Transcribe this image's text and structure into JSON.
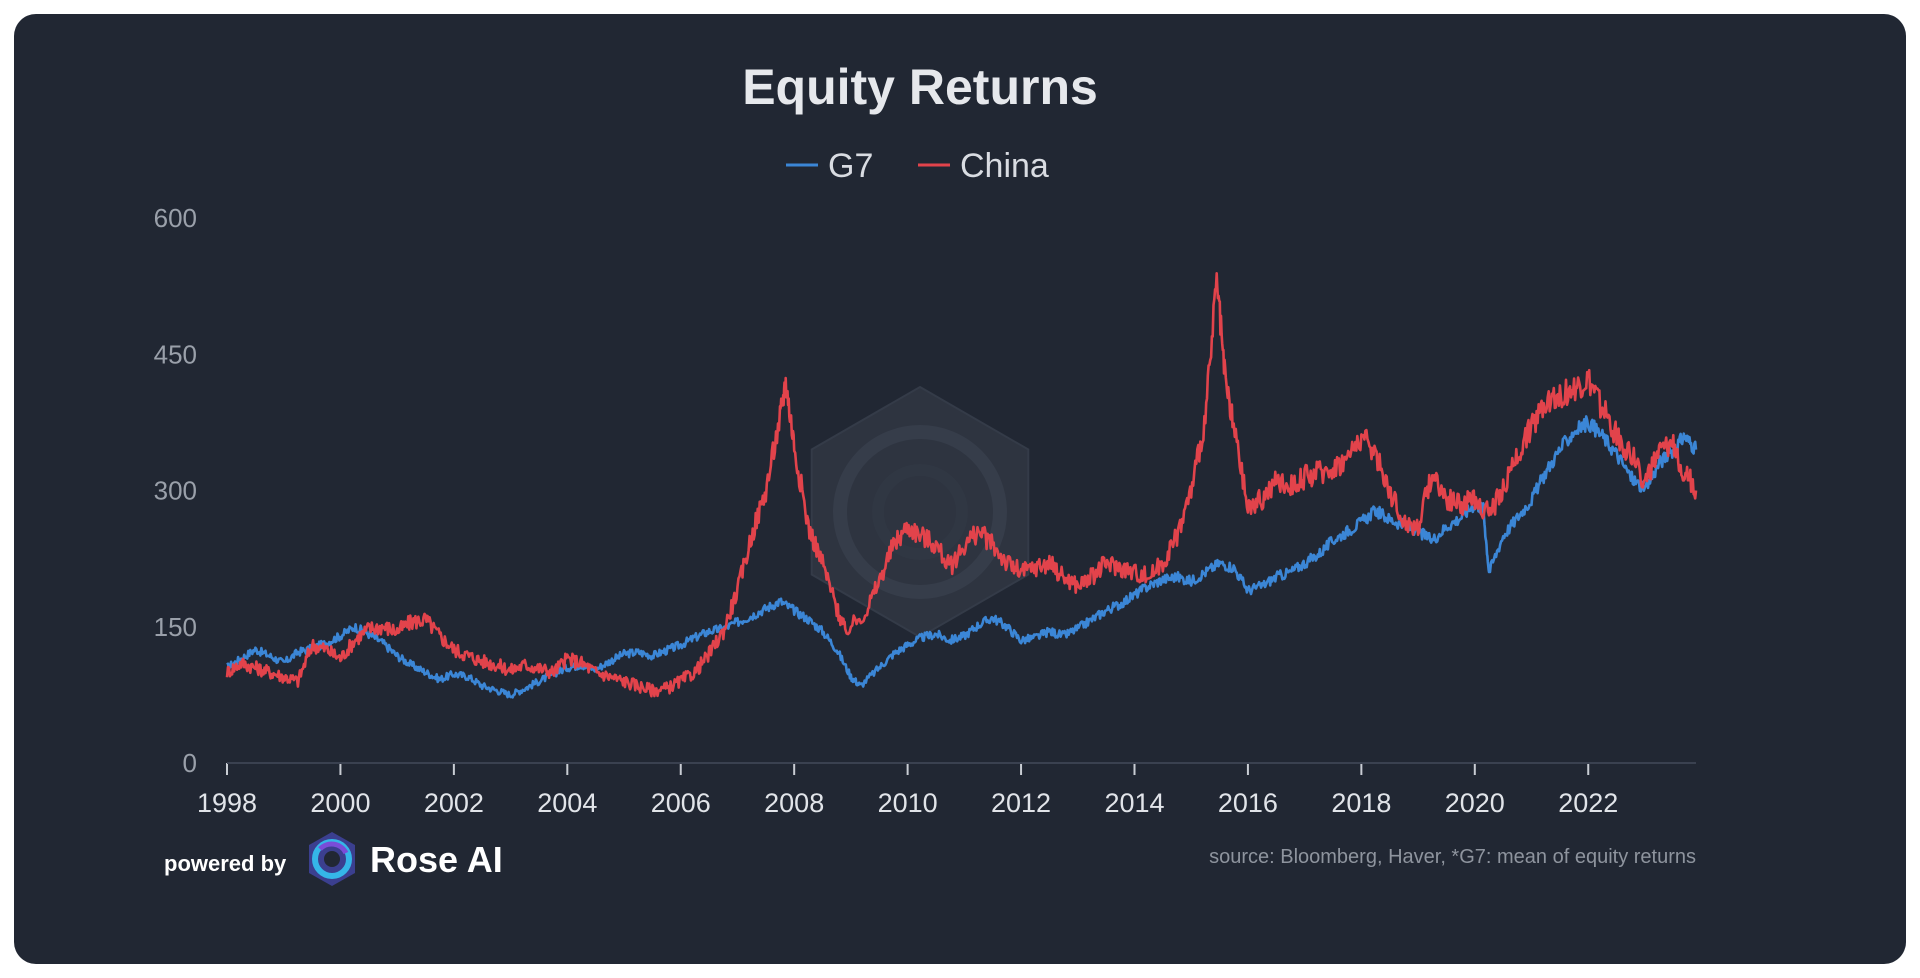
{
  "colors": {
    "background": "#212733",
    "g7": "#3b86d6",
    "china": "#e2434b",
    "axis": "#3a4150",
    "watermark": "#2e3440"
  },
  "chart_data": {
    "type": "line",
    "title": "Equity Returns",
    "xlabel": "",
    "ylabel": "",
    "xlim": [
      1998,
      2023.9
    ],
    "ylim": [
      0,
      600
    ],
    "yticks": [
      0,
      150,
      300,
      450,
      600
    ],
    "xticks": [
      1998,
      2000,
      2002,
      2004,
      2006,
      2008,
      2010,
      2012,
      2014,
      2016,
      2018,
      2020,
      2022
    ],
    "legend_position": "top-center",
    "series": [
      {
        "name": "G7",
        "color": "#3b86d6",
        "x": [
          1998.0,
          1998.25,
          1998.5,
          1998.75,
          1999.0,
          1999.25,
          1999.5,
          1999.75,
          2000.0,
          2000.25,
          2000.5,
          2000.75,
          2001.0,
          2001.25,
          2001.5,
          2001.75,
          2002.0,
          2002.25,
          2002.5,
          2002.75,
          2003.0,
          2003.25,
          2003.5,
          2003.75,
          2004.0,
          2004.25,
          2004.5,
          2004.75,
          2005.0,
          2005.25,
          2005.5,
          2005.75,
          2006.0,
          2006.25,
          2006.5,
          2006.75,
          2007.0,
          2007.25,
          2007.5,
          2007.75,
          2008.0,
          2008.25,
          2008.5,
          2008.75,
          2009.0,
          2009.17,
          2009.5,
          2009.75,
          2010.0,
          2010.25,
          2010.5,
          2010.75,
          2011.0,
          2011.25,
          2011.5,
          2011.75,
          2012.0,
          2012.25,
          2012.5,
          2012.75,
          2013.0,
          2013.25,
          2013.5,
          2013.75,
          2014.0,
          2014.25,
          2014.5,
          2014.75,
          2015.0,
          2015.25,
          2015.5,
          2015.75,
          2016.0,
          2016.25,
          2016.5,
          2016.75,
          2017.0,
          2017.25,
          2017.5,
          2017.75,
          2018.0,
          2018.25,
          2018.5,
          2018.75,
          2019.0,
          2019.25,
          2019.5,
          2019.75,
          2020.0,
          2020.15,
          2020.25,
          2020.5,
          2020.75,
          2021.0,
          2021.25,
          2021.5,
          2021.75,
          2022.0,
          2022.25,
          2022.5,
          2022.75,
          2023.0,
          2023.25,
          2023.5,
          2023.7,
          2023.9
        ],
        "values": [
          105,
          115,
          125,
          118,
          110,
          122,
          126,
          132,
          140,
          150,
          142,
          132,
          118,
          108,
          100,
          92,
          98,
          95,
          85,
          80,
          75,
          82,
          90,
          98,
          105,
          108,
          103,
          112,
          120,
          122,
          118,
          124,
          130,
          138,
          145,
          148,
          155,
          162,
          170,
          178,
          168,
          158,
          145,
          125,
          95,
          85,
          105,
          120,
          130,
          138,
          142,
          135,
          140,
          152,
          160,
          150,
          135,
          138,
          145,
          140,
          148,
          158,
          168,
          175,
          185,
          195,
          202,
          205,
          200,
          210,
          220,
          215,
          190,
          195,
          205,
          210,
          220,
          230,
          245,
          255,
          265,
          278,
          268,
          262,
          255,
          245,
          260,
          270,
          285,
          280,
          210,
          250,
          270,
          290,
          320,
          345,
          365,
          375,
          360,
          340,
          315,
          300,
          330,
          345,
          360,
          345
        ]
      },
      {
        "name": "China",
        "color": "#e2434b",
        "x": [
          1998.0,
          1998.25,
          1998.5,
          1998.75,
          1999.0,
          1999.25,
          1999.5,
          1999.75,
          2000.0,
          2000.25,
          2000.5,
          2000.75,
          2001.0,
          2001.25,
          2001.5,
          2001.75,
          2002.0,
          2002.25,
          2002.5,
          2002.75,
          2003.0,
          2003.25,
          2003.5,
          2003.75,
          2004.0,
          2004.25,
          2004.5,
          2004.75,
          2005.0,
          2005.25,
          2005.5,
          2005.75,
          2006.0,
          2006.25,
          2006.5,
          2006.75,
          2007.0,
          2007.25,
          2007.5,
          2007.75,
          2007.85,
          2008.0,
          2008.25,
          2008.5,
          2008.75,
          2008.9,
          2009.25,
          2009.5,
          2009.75,
          2010.0,
          2010.25,
          2010.5,
          2010.75,
          2011.0,
          2011.25,
          2011.5,
          2011.75,
          2012.0,
          2012.25,
          2012.5,
          2012.75,
          2013.0,
          2013.25,
          2013.5,
          2013.75,
          2014.0,
          2014.25,
          2014.5,
          2014.75,
          2015.0,
          2015.25,
          2015.45,
          2015.6,
          2015.75,
          2016.0,
          2016.25,
          2016.5,
          2016.75,
          2017.0,
          2017.25,
          2017.5,
          2017.75,
          2018.0,
          2018.25,
          2018.5,
          2018.75,
          2019.0,
          2019.25,
          2019.5,
          2019.75,
          2020.0,
          2020.25,
          2020.5,
          2020.75,
          2021.0,
          2021.25,
          2021.5,
          2021.75,
          2022.0,
          2022.25,
          2022.5,
          2022.75,
          2023.0,
          2023.25,
          2023.5,
          2023.7,
          2023.9
        ],
        "values": [
          100,
          110,
          105,
          100,
          95,
          90,
          130,
          125,
          115,
          135,
          148,
          150,
          145,
          155,
          158,
          140,
          125,
          118,
          112,
          108,
          102,
          108,
          104,
          100,
          115,
          110,
          100,
          95,
          90,
          85,
          80,
          82,
          90,
          100,
          120,
          145,
          190,
          250,
          300,
          380,
          420,
          350,
          260,
          220,
          170,
          145,
          165,
          200,
          240,
          260,
          250,
          240,
          215,
          240,
          255,
          240,
          220,
          210,
          215,
          220,
          205,
          195,
          205,
          220,
          215,
          210,
          205,
          220,
          250,
          300,
          380,
          530,
          420,
          370,
          280,
          290,
          310,
          305,
          315,
          320,
          325,
          335,
          360,
          340,
          300,
          265,
          260,
          320,
          290,
          285,
          290,
          275,
          300,
          340,
          370,
          400,
          405,
          410,
          420,
          390,
          360,
          340,
          310,
          340,
          350,
          320,
          300
        ]
      }
    ]
  },
  "footer": {
    "powered_by": "powered by",
    "brand": "Rose AI",
    "source": "source: Bloomberg, Haver, *G7: mean of equity returns"
  }
}
